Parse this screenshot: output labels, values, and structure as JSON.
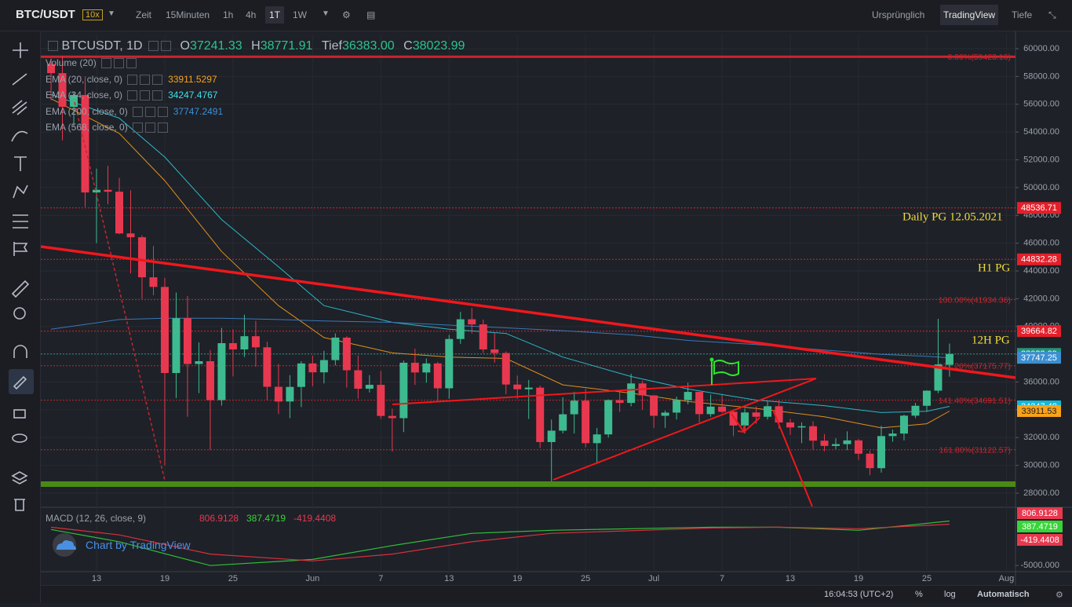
{
  "toolbar": {
    "symbol": "BTC/USDT",
    "leverage": "10x",
    "intervals": [
      "Zeit",
      "15Minuten",
      "1h",
      "4h",
      "1T",
      "1W"
    ],
    "views": [
      "Ursprünglich",
      "TradingView",
      "Tiefe"
    ]
  },
  "legend": {
    "symbol": "BTCUSDT, 1D",
    "ohlc": [
      {
        "label": "O",
        "value": "37241.33"
      },
      {
        "label": "H",
        "value": "38771.91"
      },
      {
        "label": "Tief",
        "value": "36383.00"
      },
      {
        "label": "C",
        "value": "38023.99"
      }
    ]
  },
  "indicators": [
    {
      "name": "Volume (20)"
    },
    {
      "name": "EMA (20, close, 0)",
      "value": "33911.5297",
      "color": "#f7a21b"
    },
    {
      "name": "EMA (34, close, 0)",
      "value": "34247.4767",
      "color": "#3fe0e8"
    },
    {
      "name": "EMA (200, close, 0)",
      "value": "37747.2491",
      "color": "#3d8fd6"
    },
    {
      "name": "EMA (568, close, 0)"
    }
  ],
  "annotations": [
    "Daily  PG 12.05.2021",
    "H1 PG",
    "12H PG"
  ],
  "watermark": "Chart by TradingView",
  "status": {
    "time": "16:04:53 (UTC+2)",
    "percent": "%",
    "log": "log",
    "scale": "Automatisch"
  },
  "chart_data": [
    {
      "type": "candlestick",
      "up_color": "#3dba8f",
      "down_color": "#e8384f",
      "grid": true,
      "xlim": [
        -0.9,
        84.8
      ],
      "ylim": [
        27040,
        61020
      ],
      "xticks": [
        {
          "value": 4,
          "label": "13"
        },
        {
          "value": 10,
          "label": "19"
        },
        {
          "value": 16,
          "label": "25"
        },
        {
          "value": 23,
          "label": "Jun"
        },
        {
          "value": 29,
          "label": "7"
        },
        {
          "value": 35,
          "label": "13"
        },
        {
          "value": 41,
          "label": "19"
        },
        {
          "value": 47,
          "label": "25"
        },
        {
          "value": 53,
          "label": "Jul"
        },
        {
          "value": 59,
          "label": "7"
        },
        {
          "value": 65,
          "label": "13"
        },
        {
          "value": 71,
          "label": "19"
        },
        {
          "value": 77,
          "label": "25"
        },
        {
          "value": 84,
          "label": "Aug"
        }
      ],
      "yticks": [
        {
          "value": 28000,
          "label": "28000.00"
        },
        {
          "value": 30000,
          "label": "30000.00"
        },
        {
          "value": 32000,
          "label": "32000.00"
        },
        {
          "value": 34000,
          "label": "34000.00"
        },
        {
          "value": 36000,
          "label": "36000.00"
        },
        {
          "value": 38000,
          "label": "38000.00"
        },
        {
          "value": 40000,
          "label": "40000.00"
        },
        {
          "value": 42000,
          "label": "42000.00"
        },
        {
          "value": 44000,
          "label": "44000.00"
        },
        {
          "value": 46000,
          "label": "46000.00"
        },
        {
          "value": 48000,
          "label": "48000.00"
        },
        {
          "value": 50000,
          "label": "50000.00"
        },
        {
          "value": 52000,
          "label": "52000.00"
        },
        {
          "value": 54000,
          "label": "54000.00"
        },
        {
          "value": 56000,
          "label": "56000.00"
        },
        {
          "value": 58000,
          "label": "58000.00"
        },
        {
          "value": 60000,
          "label": "60000.00"
        }
      ],
      "open": [
        58900,
        58241,
        55816,
        56670,
        49650,
        49840,
        49705,
        46700,
        46426,
        43541,
        42850,
        36650,
        40600,
        37300,
        37500,
        34700,
        38800,
        38350,
        39300,
        38500,
        35660,
        34600,
        35650,
        37340,
        36700,
        37580,
        39200,
        36850,
        35520,
        35800,
        33560,
        33400,
        37390,
        36690,
        37340,
        35550,
        39100,
        40520,
        40150,
        38350,
        38090,
        35820,
        35480,
        35600,
        31680,
        32500,
        33680,
        34660,
        31600,
        32230,
        34700,
        34500,
        35900,
        35040,
        33570,
        33800,
        34700,
        35290,
        33690,
        34230,
        33860,
        32870,
        33810,
        33500,
        34260,
        33090,
        32730,
        32820,
        31780,
        31400,
        31530,
        31800,
        30840,
        29800,
        32110,
        32290,
        33580,
        34290,
        35380,
        37241.33
      ],
      "high": [
        59300,
        59500,
        56862,
        58000,
        51367,
        51570,
        50700,
        49800,
        46560,
        45800,
        43500,
        42450,
        42200,
        38850,
        38300,
        39900,
        39800,
        40850,
        40400,
        38900,
        37300,
        36500,
        37500,
        37900,
        38250,
        39500,
        39300,
        37900,
        36500,
        36800,
        34080,
        37550,
        38400,
        37700,
        37450,
        39400,
        41050,
        41330,
        40500,
        39560,
        38200,
        36460,
        36150,
        35750,
        33300,
        34900,
        35300,
        35500,
        32700,
        34750,
        35300,
        36600,
        36100,
        35050,
        33950,
        34950,
        35950,
        35300,
        35100,
        35070,
        33920,
        34100,
        34250,
        34600,
        34680,
        33340,
        33100,
        33180,
        32250,
        31950,
        32450,
        31900,
        31050,
        32850,
        32580,
        33650,
        34500,
        35400,
        40550,
        38771.91
      ],
      "low": [
        56300,
        53400,
        54370,
        48600,
        46000,
        48800,
        46650,
        43825,
        42000,
        42250,
        30000,
        34850,
        33500,
        35200,
        31100,
        34300,
        36400,
        37800,
        37100,
        34700,
        33700,
        33400,
        34200,
        35700,
        35900,
        37200,
        35600,
        34800,
        35250,
        33350,
        31000,
        32400,
        35800,
        35950,
        34600,
        34800,
        38750,
        39500,
        38100,
        37400,
        35130,
        34800,
        33340,
        31250,
        28800,
        32300,
        32300,
        31300,
        30150,
        32000,
        33850,
        34250,
        34000,
        32700,
        32700,
        33300,
        34400,
        33100,
        33500,
        33770,
        32100,
        32300,
        33000,
        33300,
        32650,
        32200,
        31600,
        31130,
        31020,
        31170,
        31100,
        30400,
        29300,
        29480,
        31700,
        31800,
        33400,
        33850,
        35200,
        36383
      ],
      "close": [
        58240,
        55816,
        56670,
        49650,
        49840,
        49705,
        46700,
        46426,
        43541,
        42850,
        36650,
        40600,
        37300,
        37500,
        34700,
        38800,
        38350,
        39300,
        38500,
        35660,
        34600,
        35650,
        37340,
        36700,
        37580,
        39200,
        36850,
        35520,
        35800,
        33560,
        33400,
        37390,
        36690,
        37340,
        35550,
        39100,
        40520,
        40150,
        38350,
        38090,
        35820,
        35480,
        35600,
        31680,
        32500,
        33680,
        34660,
        31600,
        32230,
        34700,
        34500,
        35900,
        35040,
        33570,
        33800,
        34700,
        35290,
        33690,
        34230,
        33860,
        32870,
        33810,
        33500,
        34260,
        33090,
        32730,
        32820,
        31780,
        31400,
        31530,
        31800,
        30840,
        29800,
        32110,
        32290,
        33580,
        34290,
        35380,
        37270,
        38023.99
      ],
      "series": [
        {
          "name": "EMA (20, close, 0)",
          "color": "#e0901b",
          "x": [
            0,
            6,
            10,
            15,
            20,
            24,
            30,
            35,
            40,
            45,
            51,
            56,
            62,
            68,
            73,
            77,
            79
          ],
          "values": [
            56400,
            53900,
            50500,
            45400,
            41500,
            39200,
            38100,
            37800,
            37700,
            35800,
            35200,
            34600,
            34100,
            33500,
            32700,
            33000,
            33911.53
          ]
        },
        {
          "name": "EMA (34, close, 0)",
          "color": "#2bb8c8",
          "x": [
            0,
            6,
            10,
            15,
            20,
            24,
            30,
            35,
            40,
            45,
            51,
            56,
            62,
            68,
            73,
            77,
            79
          ],
          "values": [
            56700,
            55000,
            52200,
            47700,
            44300,
            41500,
            40300,
            39800,
            39500,
            37800,
            36400,
            35500,
            34700,
            34300,
            33800,
            33900,
            34247.48
          ]
        },
        {
          "name": "EMA (200, close, 0)",
          "color": "#3a78b8",
          "x": [
            0,
            6,
            10,
            15,
            20,
            24,
            30,
            35,
            40,
            45,
            51,
            56,
            62,
            68,
            73,
            77,
            79
          ],
          "values": [
            39800,
            40500,
            40600,
            40600,
            40500,
            40400,
            40300,
            40100,
            39900,
            39700,
            39400,
            39000,
            38700,
            38300,
            38000,
            37850,
            37747.25
          ]
        }
      ],
      "fib_color": "#c8262f",
      "fib_levels": [
        {
          "value": 59423.16,
          "label": "0.00%(59423.16)",
          "line": "solid"
        },
        {
          "value": 41934.36,
          "label": "100.00%(41934.36)",
          "line": "dotted"
        },
        {
          "value": 37175.77,
          "label": "127.20%(37175.77)",
          "line": "dotted"
        },
        {
          "value": 34691.51,
          "label": "141.40%(34691.51)",
          "line": "dotted"
        },
        {
          "value": 31122.57,
          "label": "161.80%(31122.57)",
          "line": "dotted"
        }
      ],
      "levels": [
        {
          "value": 48536.71,
          "color": "#e3202a",
          "text_color": "#ffffff",
          "line": "dotted"
        },
        {
          "value": 44832.28,
          "color": "#e3202a",
          "text_color": "#ffffff",
          "line": "dotted"
        },
        {
          "value": 39664.82,
          "color": "#e3202a",
          "text_color": "#ffffff",
          "line": "dotted"
        },
        {
          "value": 38023.99,
          "color": "#23957f",
          "text_color": "#ffffff",
          "line": "dotted"
        },
        {
          "value": 37747.25,
          "color": "#3c8fd0",
          "text_color": "#ffffff",
          "line": "none"
        },
        {
          "value": 34247.48,
          "color": "#14b8d8",
          "text_color": "#ffffff",
          "line": "none"
        },
        {
          "value": 33911.53,
          "color": "#f7a21b",
          "text_color": "#222222",
          "line": "none"
        }
      ]
    },
    {
      "type": "line",
      "title": "MACD (12, 26, close, 9)",
      "xlim": [
        -0.9,
        84.8
      ],
      "ylim": [
        -5800,
        2500
      ],
      "yticks": [
        {
          "value": -5000,
          "label": "-5000.000"
        }
      ],
      "readouts": [
        "806.9128",
        "387.4719",
        "-419.4408"
      ],
      "readout_colors": [
        "#e8384f",
        "#38d438",
        "#e8384f"
      ],
      "series": [
        {
          "color": "#2fbf3a",
          "x": [
            0,
            6,
            14,
            23,
            30,
            37,
            44,
            58,
            64,
            71,
            79
          ],
          "values": [
            -300,
            -1900,
            -5000,
            -4200,
            -2400,
            -800,
            -400,
            0,
            0,
            -400,
            806.9128
          ]
        },
        {
          "color": "#d8303c",
          "x": [
            0,
            6,
            14,
            23,
            30,
            37,
            44,
            58,
            64,
            71,
            79
          ],
          "values": [
            0,
            -1000,
            -3500,
            -4400,
            -3500,
            -1900,
            -800,
            -100,
            0,
            -200,
            387.4719
          ]
        }
      ]
    }
  ]
}
